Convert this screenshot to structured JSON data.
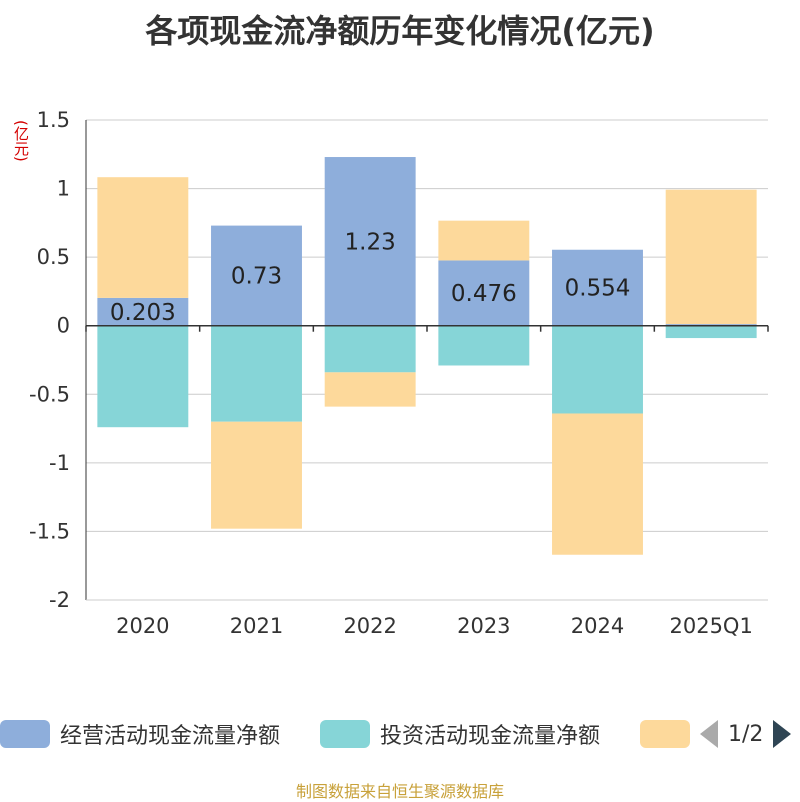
{
  "title": "各项现金流净额历年变化情况(亿元)",
  "unit_label": "(亿元)",
  "source": "制图数据来自恒生聚源数据库",
  "pager": {
    "text": "1/2"
  },
  "colors": {
    "operating": "#8eaedb",
    "investing": "#86d5d7",
    "financing": "#fdd99b"
  },
  "chart_data": {
    "type": "bar",
    "stacked": true,
    "categories": [
      "2020",
      "2021",
      "2022",
      "2023",
      "2024",
      "2025Q1"
    ],
    "ylim": [
      -2,
      1.5
    ],
    "yticks": [
      "1.5",
      "1",
      "0.5",
      "0",
      "-0.5",
      "-1",
      "-1.5",
      "-2"
    ],
    "grid": true,
    "legend_position": "bottom",
    "series": [
      {
        "name": "经营活动现金流量净额",
        "values": [
          0.203,
          0.73,
          1.23,
          0.476,
          0.554,
          0.0119
        ],
        "labels": [
          "0.203",
          "0.73",
          "1.23",
          "0.476",
          "0.554",
          ""
        ]
      },
      {
        "name": "投资活动现金流量净额",
        "values": [
          -0.74,
          -0.7,
          -0.34,
          -0.29,
          -0.64,
          -0.09
        ]
      },
      {
        "name": "",
        "values": [
          0.88,
          -0.78,
          -0.25,
          0.29,
          -1.03,
          0.98
        ]
      }
    ]
  }
}
